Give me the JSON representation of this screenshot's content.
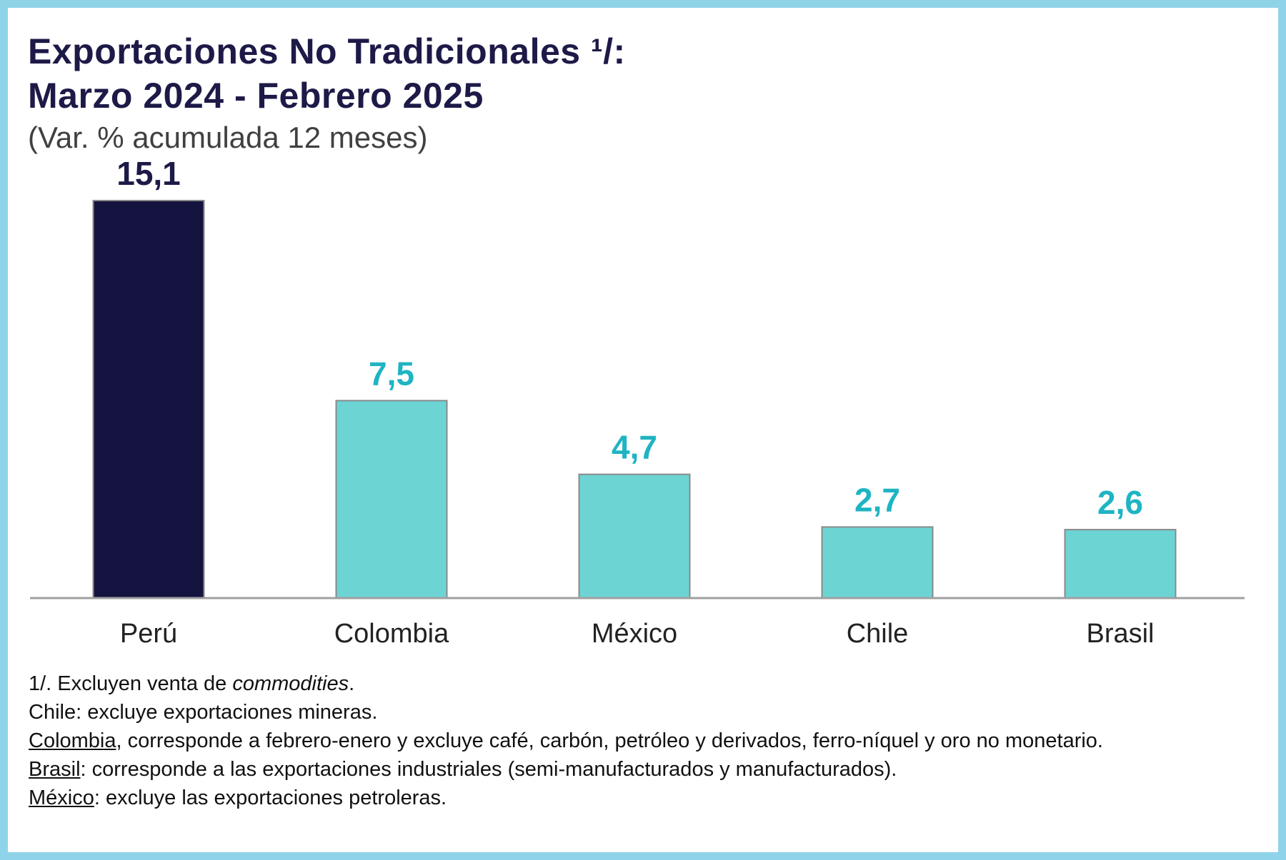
{
  "chart_data": {
    "type": "bar",
    "title_line1": "Exportaciones No Tradicionales ¹/:",
    "title_line2": "Marzo 2024 - Febrero 2025",
    "subtitle": "(Var. % acumulada 12 meses)",
    "categories": [
      "Perú",
      "Colombia",
      "México",
      "Chile",
      "Brasil"
    ],
    "values": [
      15.1,
      7.5,
      4.7,
      2.7,
      2.6
    ],
    "value_labels": [
      "15,1",
      "7,5",
      "4,7",
      "2,7",
      "2,6"
    ],
    "bar_colors": [
      "#15133f",
      "#6dd4d4",
      "#6dd4d4",
      "#6dd4d4",
      "#6dd4d4"
    ],
    "label_colors": [
      "#1d1a48",
      "#1fb4c3",
      "#1fb4c3",
      "#1fb4c3",
      "#1fb4c3"
    ],
    "ylim": [
      0,
      15.1
    ],
    "xlabel": "",
    "ylabel": "",
    "grid": false,
    "legend": "none"
  },
  "notes": {
    "n1_main": "1/. Excluyen venta de ",
    "n1_italic": "commodities",
    "n1_end": ".",
    "n2": "Chile: excluye exportaciones mineras.",
    "n3_country": "Colombia",
    "n3_text": ", corresponde a febrero-enero y excluye café, carbón, petróleo y derivados, ferro-níquel y oro no monetario.",
    "n4_country": "Brasil",
    "n4_text": ": corresponde a las exportaciones industriales (semi-manufacturados y manufacturados).",
    "n5_country": "México",
    "n5_text": ": excluye las exportaciones petroleras."
  }
}
